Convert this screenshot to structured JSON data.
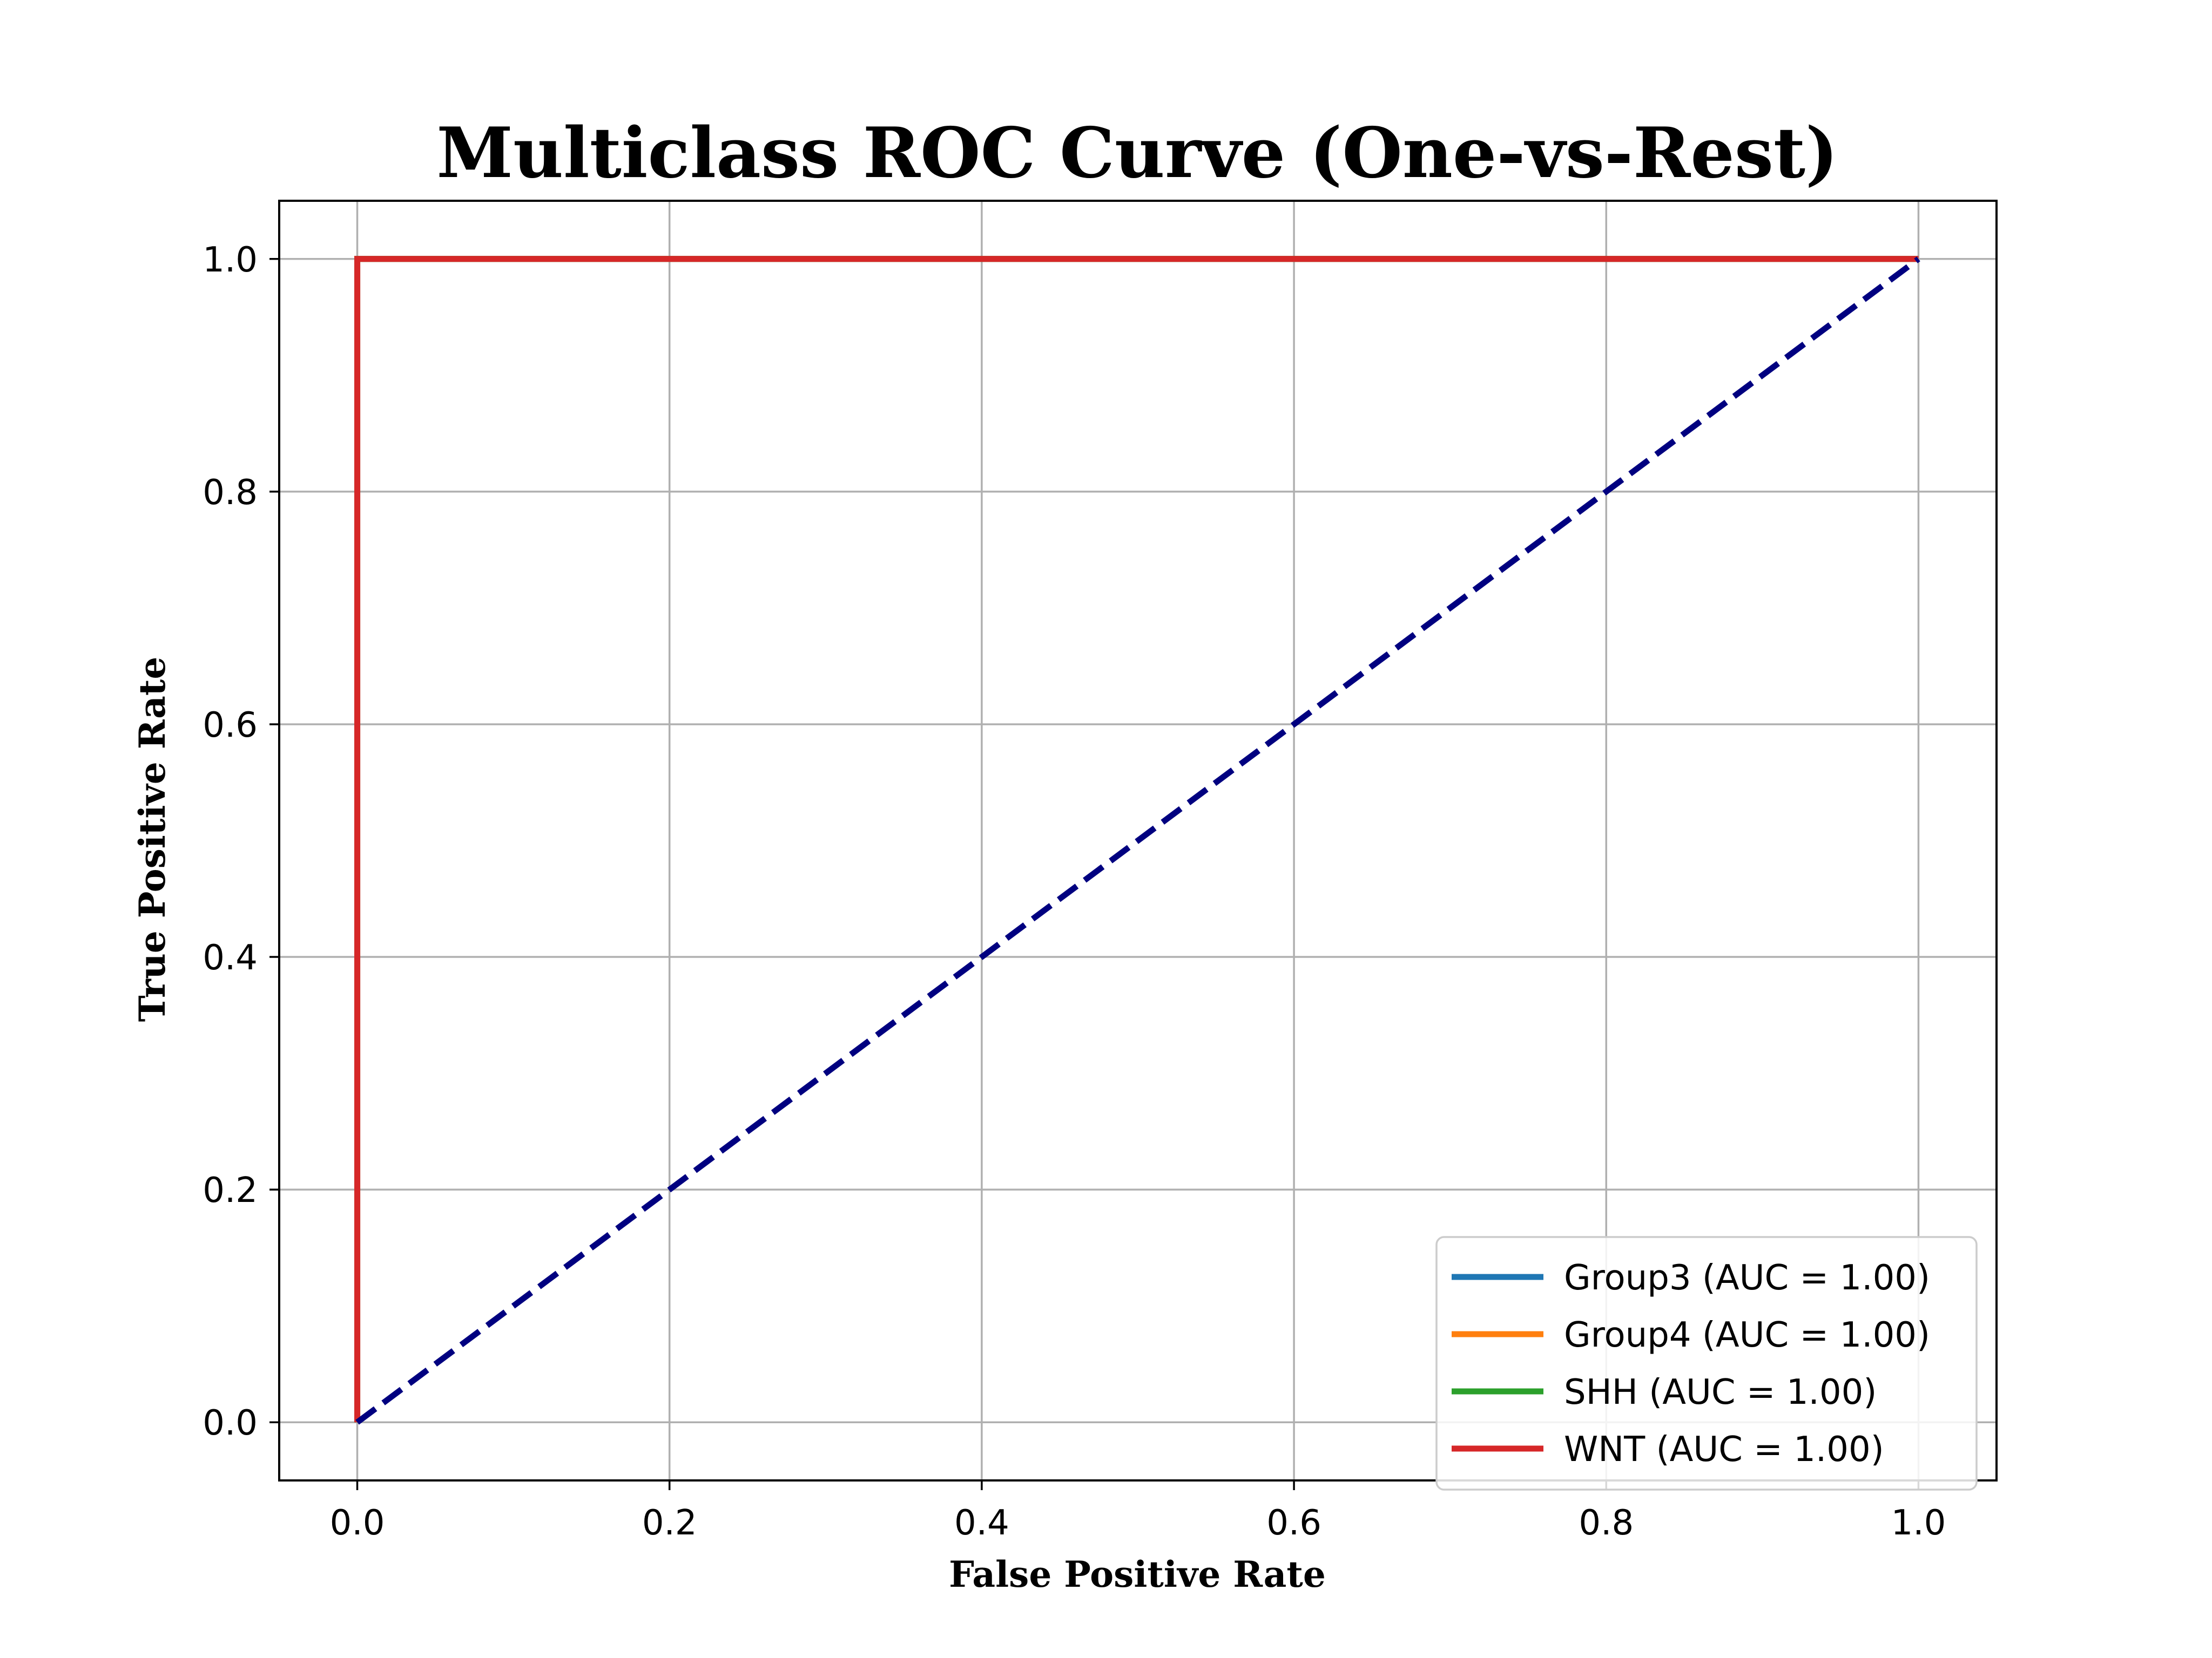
{
  "chart_data": {
    "type": "line",
    "title": "Multiclass ROC Curve (One-vs-Rest)",
    "xlabel": "False Positive Rate",
    "ylabel": "True Positive Rate",
    "xlim": [
      -0.05,
      1.05
    ],
    "ylim": [
      -0.05,
      1.05
    ],
    "xticks": [
      0.0,
      0.2,
      0.4,
      0.6,
      0.8,
      1.0
    ],
    "yticks": [
      0.0,
      0.2,
      0.4,
      0.6,
      0.8,
      1.0
    ],
    "xtick_labels": [
      "0.0",
      "0.2",
      "0.4",
      "0.6",
      "0.8",
      "1.0"
    ],
    "ytick_labels": [
      "0.0",
      "0.2",
      "0.4",
      "0.6",
      "0.8",
      "1.0"
    ],
    "grid": true,
    "legend_position": "lower-right",
    "series": [
      {
        "name": "Group3 (AUC = 1.00)",
        "color": "#1f77b4",
        "x": [
          0.0,
          0.0,
          1.0
        ],
        "y": [
          0.0,
          1.0,
          1.0
        ]
      },
      {
        "name": "Group4 (AUC = 1.00)",
        "color": "#ff7f0e",
        "x": [
          0.0,
          0.0,
          1.0
        ],
        "y": [
          0.0,
          1.0,
          1.0
        ]
      },
      {
        "name": "SHH (AUC = 1.00)",
        "color": "#2ca02c",
        "x": [
          0.0,
          0.0,
          1.0
        ],
        "y": [
          0.0,
          1.0,
          1.0
        ]
      },
      {
        "name": "WNT (AUC = 1.00)",
        "color": "#d62728",
        "x": [
          0.0,
          0.0,
          1.0
        ],
        "y": [
          0.0,
          1.0,
          1.0
        ]
      }
    ],
    "reference_line": {
      "x": [
        0.0,
        1.0
      ],
      "y": [
        0.0,
        1.0
      ],
      "color": "#000080",
      "style": "dashed"
    }
  }
}
